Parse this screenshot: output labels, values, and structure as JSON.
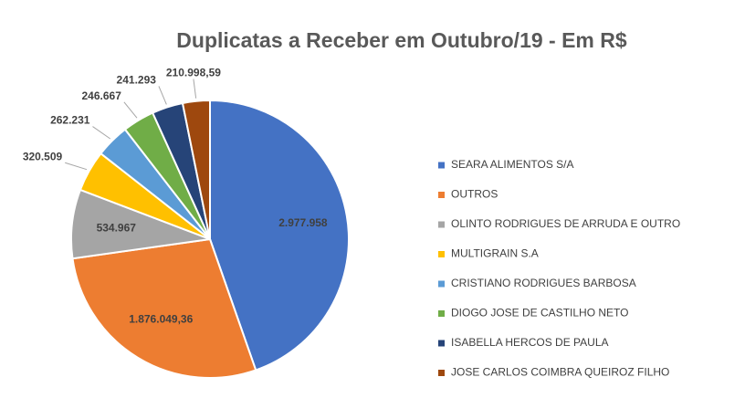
{
  "chart_data": {
    "type": "pie",
    "title": "Duplicatas a Receber em Outubro/19 - Em R$",
    "categories": [
      "SEARA ALIMENTOS S/A",
      "OUTROS",
      "OLINTO RODRIGUES DE ARRUDA E OUTRO",
      "MULTIGRAIN S.A",
      "CRISTIANO RODRIGUES BARBOSA",
      "DIOGO JOSE DE CASTILHO NETO",
      "ISABELLA HERCOS DE PAULA",
      "JOSE CARLOS COIMBRA QUEIROZ FILHO"
    ],
    "values": [
      2977958,
      1876049.36,
      534967,
      320509,
      262231,
      246667,
      241293,
      210998.59
    ],
    "value_labels": [
      "2.977.958",
      "1.876.049,36",
      "534.967",
      "320.509",
      "262.231",
      "246.667",
      "241.293",
      "210.998,59"
    ],
    "colors": [
      "#4472c4",
      "#ed7d31",
      "#a5a5a5",
      "#ffc000",
      "#5b9bd5",
      "#70ad47",
      "#264478",
      "#9e480e"
    ],
    "legend": "right"
  }
}
